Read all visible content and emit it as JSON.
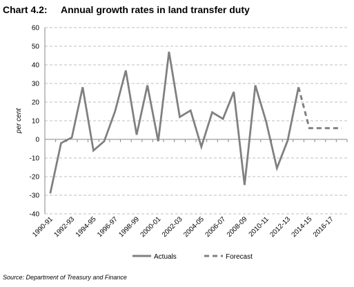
{
  "chart_data": {
    "type": "line",
    "chart_number": "Chart 4.2:",
    "title": "Annual growth rates in land transfer duty",
    "ylabel": "per cent",
    "xlabel": "",
    "ylim": [
      -40,
      60
    ],
    "yticks": [
      -40,
      -30,
      -20,
      -10,
      0,
      10,
      20,
      30,
      40,
      50,
      60
    ],
    "grid": true,
    "legend": "bottom",
    "x": [
      "1990-91",
      "1991-92",
      "1992-93",
      "1993-94",
      "1994-95",
      "1995-96",
      "1996-97",
      "1997-98",
      "1998-99",
      "1999-00",
      "2000-01",
      "2001-02",
      "2002-03",
      "2003-04",
      "2004-05",
      "2005-06",
      "2006-07",
      "2007-08",
      "2008-09",
      "2009-10",
      "2010-11",
      "2011-12",
      "2012-13",
      "2013-14",
      "2014-15",
      "2015-16",
      "2016-17",
      "2017-18"
    ],
    "tick_labels": [
      "1990-91",
      "1992-93",
      "1994-95",
      "1996-97",
      "1998-99",
      "2000-01",
      "2002-03",
      "2004-05",
      "2006-07",
      "2008-09",
      "2010-11",
      "2012-13",
      "2014-15",
      "2016-17"
    ],
    "series": [
      {
        "name": "Actuals",
        "style": "solid",
        "color": "#808080",
        "values": [
          -29,
          -2,
          1,
          28,
          -6,
          -1,
          15,
          37,
          2.5,
          29,
          -1,
          47,
          12,
          15.5,
          -4,
          14.5,
          11,
          25.5,
          -24.5,
          29,
          9.5,
          -15.5,
          -0.5,
          28,
          null,
          null,
          null,
          null
        ]
      },
      {
        "name": "Forecast",
        "style": "dashed",
        "color": "#808080",
        "values": [
          null,
          null,
          null,
          null,
          null,
          null,
          null,
          null,
          null,
          null,
          null,
          null,
          null,
          null,
          null,
          null,
          null,
          null,
          null,
          null,
          null,
          null,
          null,
          28,
          6,
          6,
          6,
          6
        ]
      }
    ]
  },
  "source": "Source: Department of Treasury and Finance"
}
